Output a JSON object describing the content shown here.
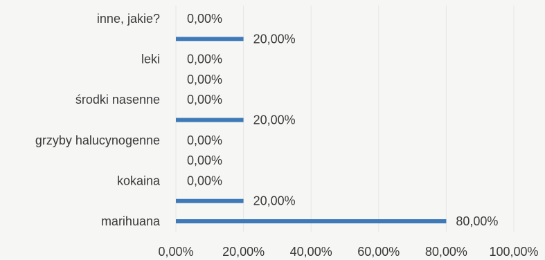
{
  "chart_data": {
    "type": "bar",
    "orientation": "horizontal",
    "categories": [
      "marihuana",
      "",
      "kokaina",
      "",
      "grzyby halucynogenne",
      "",
      "środki nasenne",
      "",
      "leki",
      "",
      "inne, jakie?"
    ],
    "values": [
      80,
      20,
      0,
      0,
      0,
      20,
      0,
      0,
      0,
      20,
      0
    ],
    "value_labels": [
      "80,00%",
      "20,00%",
      "0,00%",
      "0,00%",
      "0,00%",
      "20,00%",
      "0,00%",
      "0,00%",
      "0,00%",
      "20,00%",
      "0,00%"
    ],
    "xlim": [
      0,
      100
    ],
    "x_ticks": [
      0,
      20,
      40,
      60,
      80,
      100
    ],
    "x_tick_labels": [
      "0,00%",
      "20,00%",
      "40,00%",
      "60,00%",
      "80,00%",
      "100,00%"
    ],
    "bar_color": "#3f7ab8",
    "grid": true,
    "grid_color": "#e6e6e6"
  }
}
